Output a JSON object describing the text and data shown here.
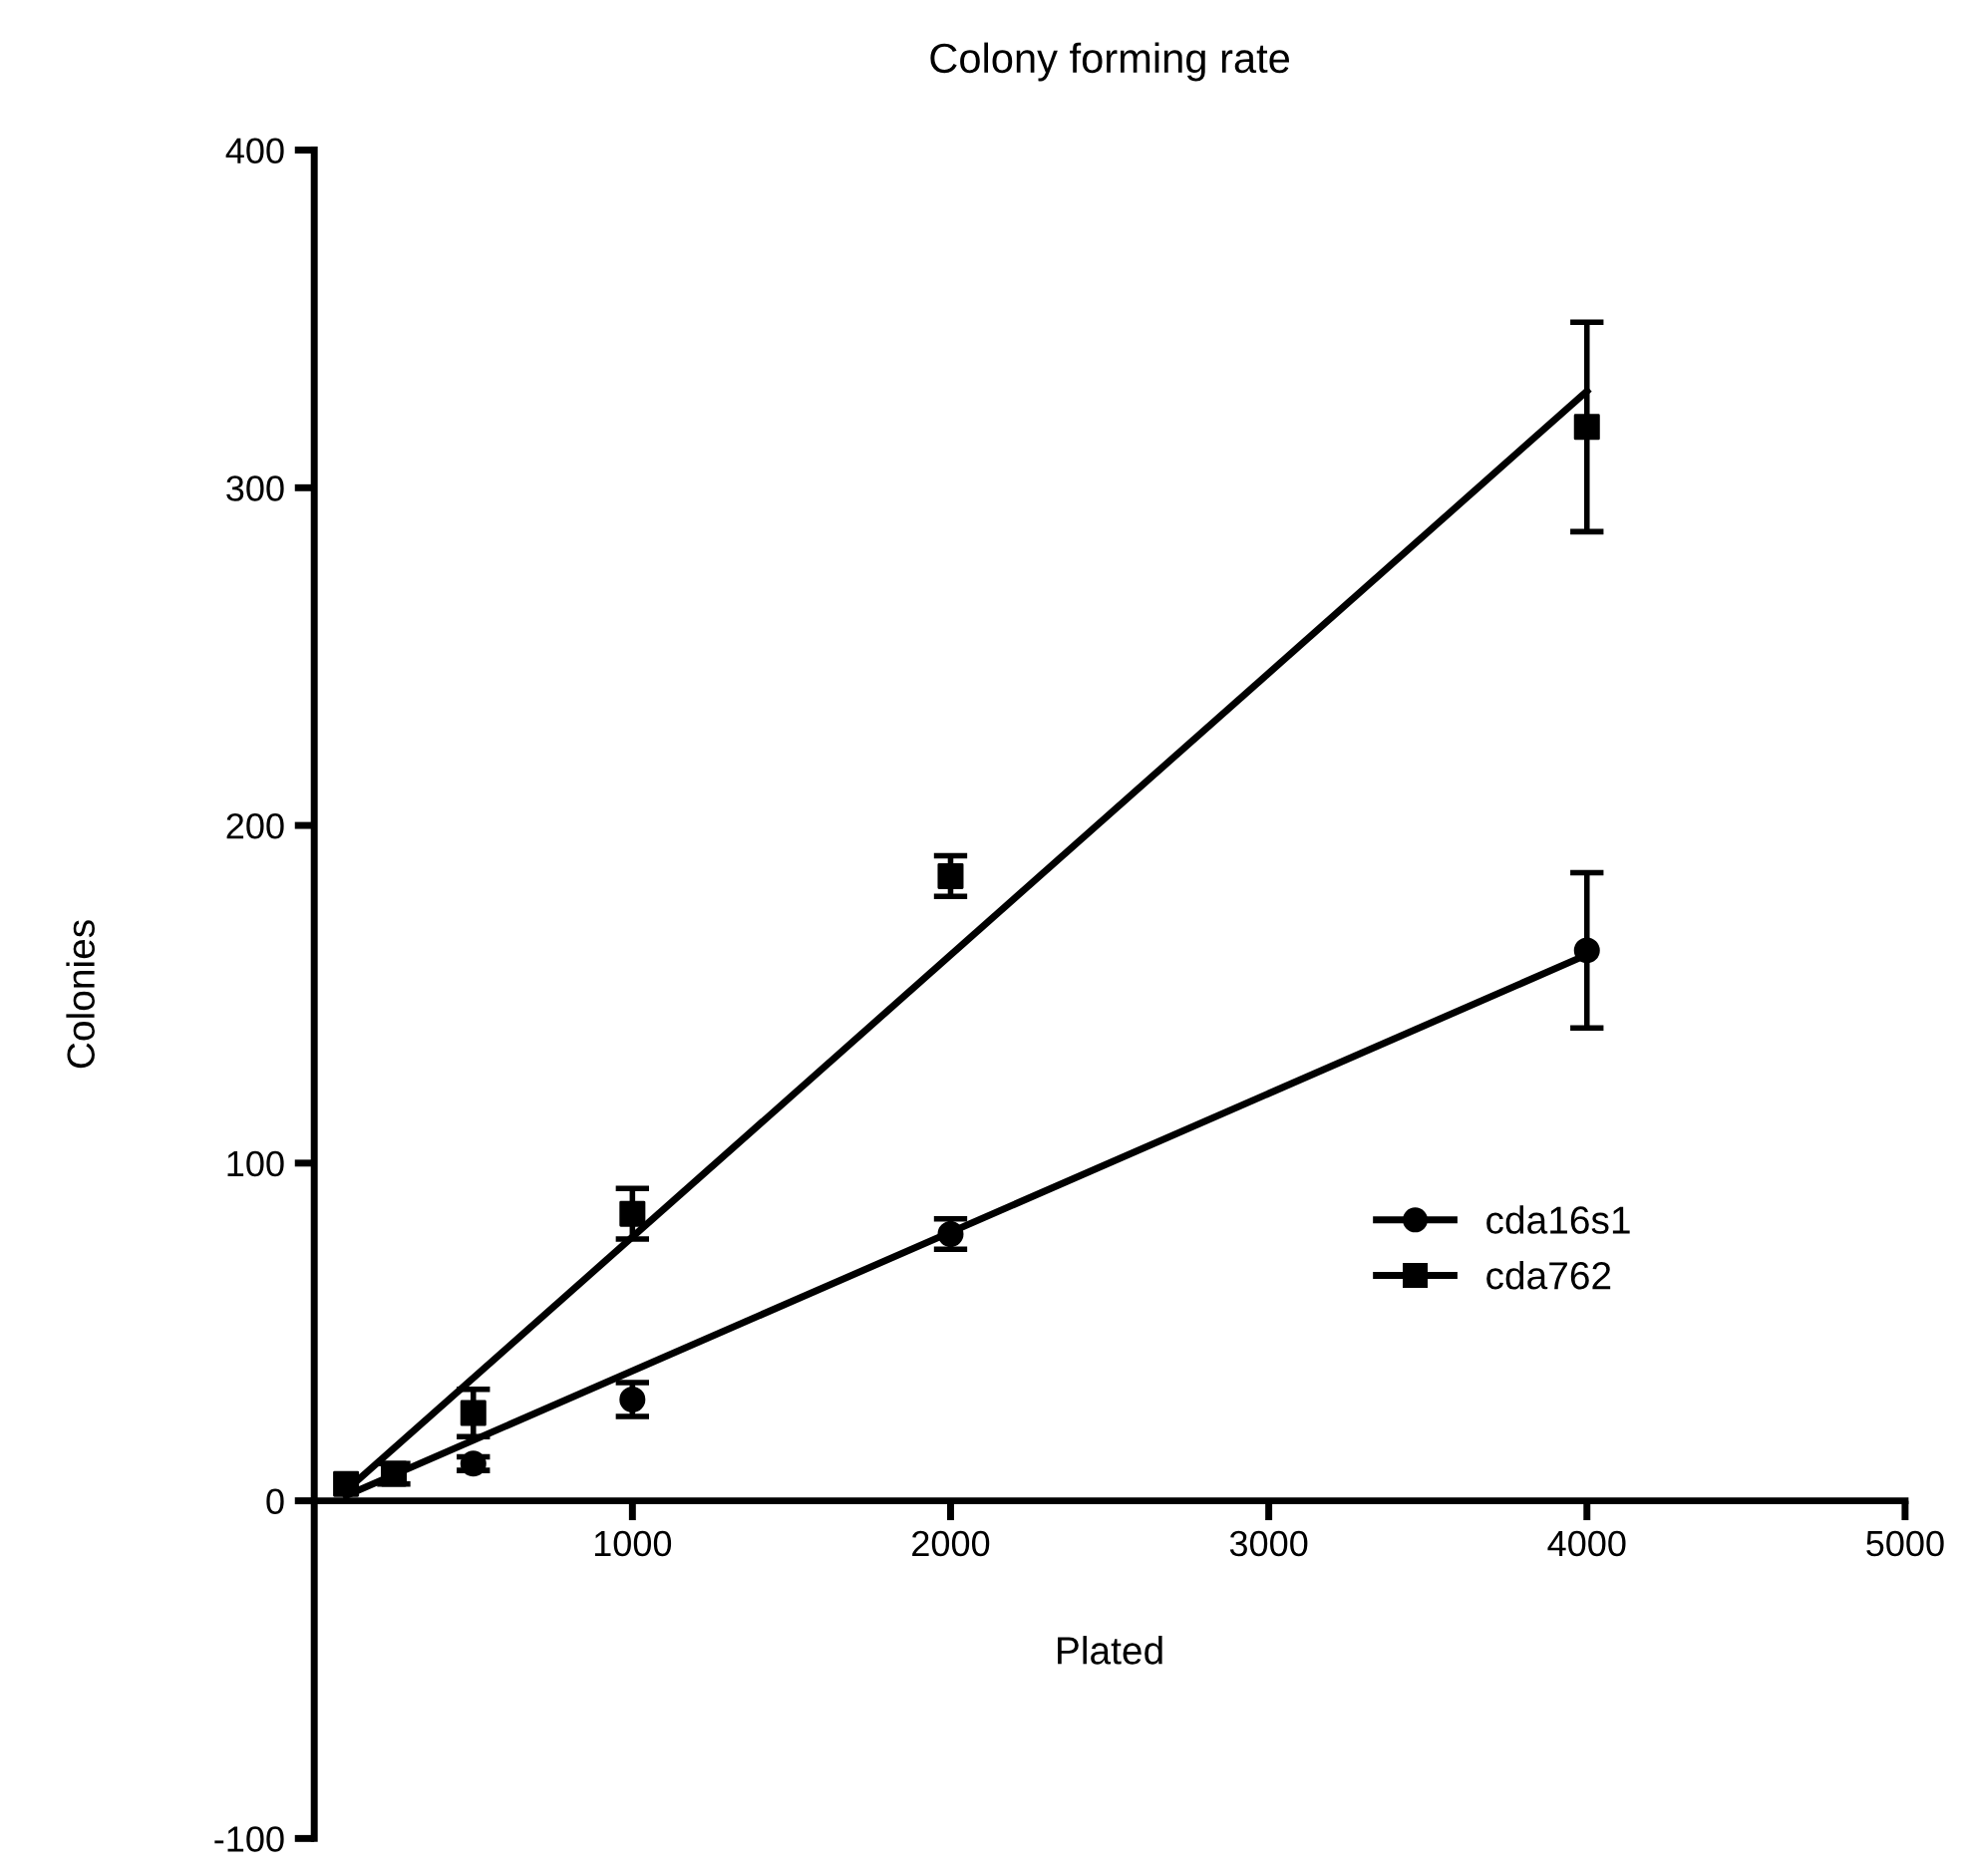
{
  "chart_data": {
    "type": "scatter",
    "title": "Colony forming rate",
    "xlabel": "Plated",
    "ylabel": "Colonies",
    "xlim": [
      0,
      5000
    ],
    "ylim": [
      -100,
      400
    ],
    "xticks": [
      1000,
      2000,
      3000,
      4000,
      5000
    ],
    "yticks": [
      -100,
      0,
      100,
      200,
      300,
      400
    ],
    "grid": false,
    "legend": "bottom right",
    "series": [
      {
        "name": "cda16s1",
        "marker": "circle",
        "color": "#000000",
        "x": [
          500,
          1000,
          2000,
          4000
        ],
        "values": [
          11,
          30,
          79,
          163
        ],
        "errors": [
          2,
          5,
          4.5,
          23
        ]
      },
      {
        "name": "cda762",
        "marker": "square",
        "color": "#000000",
        "x": [
          100,
          250,
          500,
          1000,
          2000,
          4000
        ],
        "values": [
          5,
          8,
          26,
          85,
          185,
          318
        ],
        "errors": [
          null,
          3,
          7,
          7.5,
          6,
          31
        ]
      },
      {
        "type": "line",
        "marker": "none",
        "color": "#000000",
        "x": [
          100,
          4000
        ],
        "values": [
          1.5,
          161.7
        ]
      },
      {
        "type": "line",
        "marker": "none",
        "color": "#000000",
        "x": [
          100,
          4000
        ],
        "values": [
          3,
          328.6
        ]
      }
    ]
  }
}
